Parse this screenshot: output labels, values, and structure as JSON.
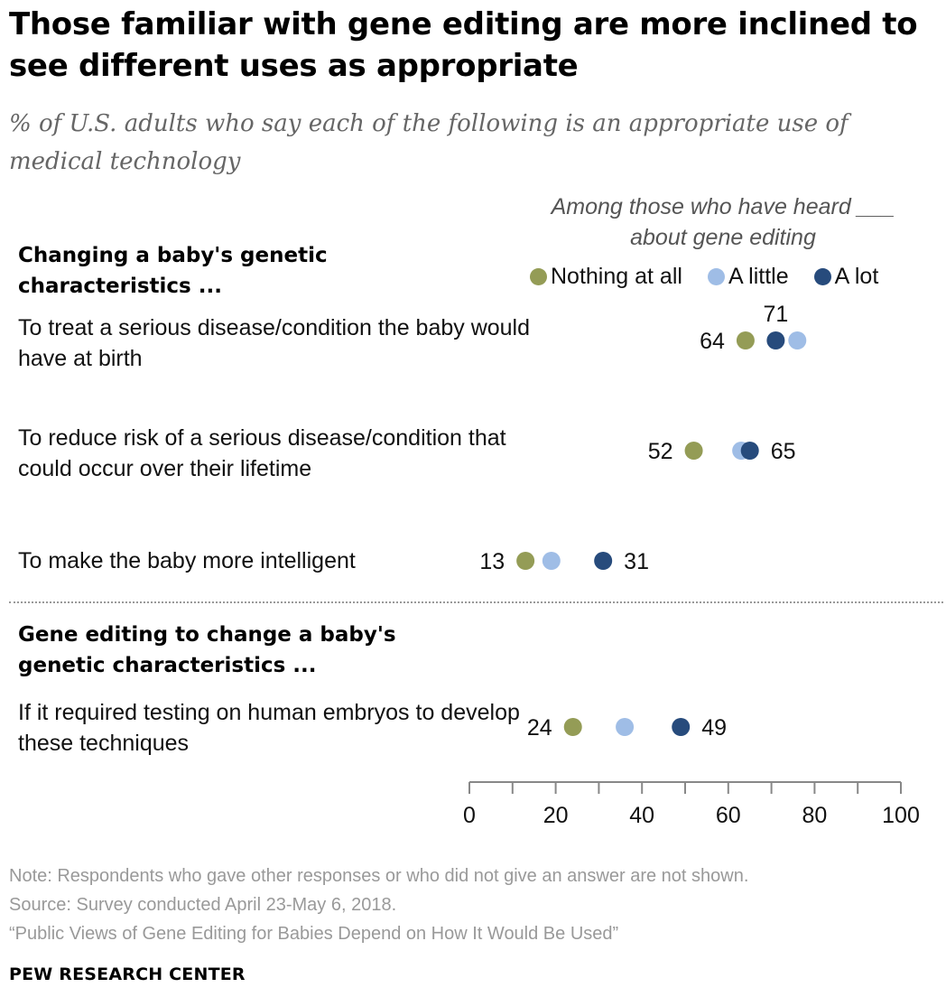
{
  "title": "Those familiar with gene editing are more inclined to see different uses as appropriate",
  "subtitle": "% of U.S. adults who say each of the following is an appropriate use of medical technology",
  "legend_heading": "Among those who have heard ___ about gene editing",
  "groups": [
    {
      "heading": "Changing a baby's genetic characteristics ..."
    },
    {
      "heading": "Gene editing to change a baby's genetic characteristics ..."
    }
  ],
  "rows": [
    {
      "label": "To treat a serious disease/condition the baby would have at birth"
    },
    {
      "label": "To reduce risk of a serious disease/condition that could occur over their lifetime"
    },
    {
      "label": "To make the baby more intelligent"
    },
    {
      "label": "If it required testing on human embryos to develop these techniques"
    }
  ],
  "chart_data": {
    "type": "scatter",
    "categories": [
      "To treat a serious disease/condition the baby would have at birth",
      "To reduce risk of a serious disease/condition that could occur over their lifetime",
      "To make the baby more intelligent",
      "If it required testing on human embryos to develop these techniques"
    ],
    "series": [
      {
        "name": "Nothing at all",
        "color": "#949c56",
        "values": [
          64,
          52,
          13,
          24
        ],
        "labeled": [
          true,
          true,
          true,
          true
        ]
      },
      {
        "name": "A little",
        "color": "#9fbde6",
        "values": [
          76,
          63,
          19,
          36
        ],
        "labeled": [
          false,
          false,
          false,
          false
        ]
      },
      {
        "name": "A lot",
        "color": "#274b7c",
        "values": [
          71,
          65,
          31,
          49
        ],
        "labeled": [
          true,
          true,
          true,
          true
        ]
      }
    ],
    "xlim": [
      0,
      100
    ],
    "xticks": [
      0,
      20,
      40,
      60,
      80,
      100
    ],
    "xlabel": "",
    "ylabel": "",
    "grid": false,
    "legend_position": "top-right"
  },
  "notes": {
    "note": "Note: Respondents who gave other responses or who did not give an answer are not shown.",
    "source": "Source: Survey conducted April 23-May 6, 2018.",
    "report": "“Public Views of Gene Editing for Babies Depend on How It Would Be Used”"
  },
  "brand": "PEW RESEARCH CENTER"
}
